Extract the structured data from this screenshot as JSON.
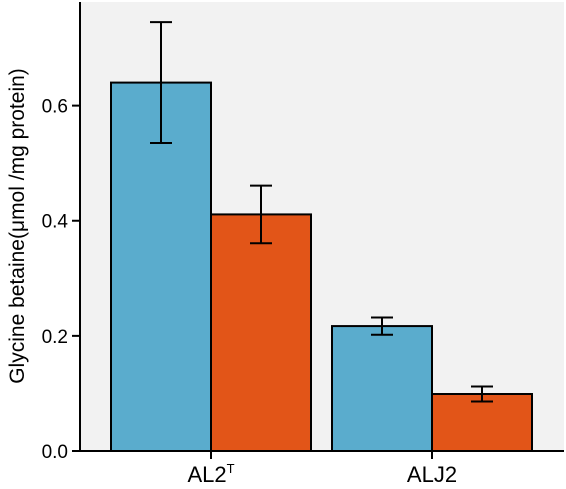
{
  "chart_data": {
    "type": "bar",
    "categories": [
      "AL2",
      "ALJ2"
    ],
    "category_superscripts": [
      "T",
      ""
    ],
    "series": [
      {
        "values": [
          0.64,
          0.217
        ],
        "errors": [
          0.105,
          0.015
        ],
        "color": "#5aaccd"
      },
      {
        "values": [
          0.411,
          0.099
        ],
        "errors": [
          0.05,
          0.013
        ],
        "color": "#e25518"
      }
    ],
    "xlabel": "",
    "ylabel": "Glycine betaine(μmol /mg protein)",
    "ylim": [
      0,
      0.78
    ],
    "yticks": [
      0.0,
      0.2,
      0.4,
      0.6
    ],
    "ytick_labels": [
      "0.0",
      "0.2",
      "0.4",
      "0.6"
    ],
    "panel_background": "#f2f2f2",
    "grid": false,
    "legend": "none"
  }
}
